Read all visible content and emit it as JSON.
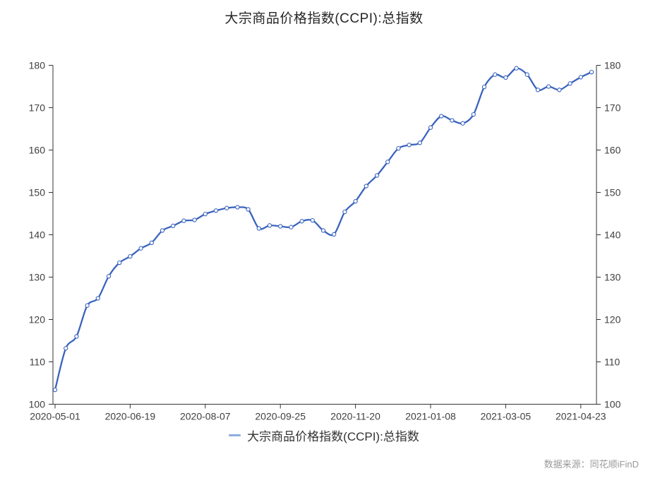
{
  "page_title": "大宗商品价格指数(CCPI):总指数",
  "chart_data": {
    "type": "line",
    "title": "大宗商品价格指数(CCPI):总指数",
    "series": [
      {
        "name": "大宗商品价格指数(CCPI):总指数",
        "values": [
          103.4,
          113.2,
          116.0,
          123.3,
          125.0,
          130.2,
          133.4,
          134.9,
          136.8,
          138.1,
          141.0,
          142.1,
          143.3,
          143.5,
          144.9,
          145.7,
          146.3,
          146.5,
          146.0,
          141.5,
          142.2,
          142.0,
          141.8,
          143.2,
          143.4,
          141.0,
          140.1,
          145.4,
          147.9,
          151.5,
          154.0,
          157.2,
          160.4,
          161.2,
          161.7,
          165.3,
          168.0,
          167.0,
          166.3,
          168.4,
          174.9,
          177.8,
          177.1,
          179.3,
          177.8,
          174.2,
          175.0,
          174.2,
          175.7,
          177.2,
          178.4
        ]
      }
    ],
    "x_tick_labels": [
      "2020-05-01",
      "2020-06-19",
      "2020-08-07",
      "2020-09-25",
      "2020-11-20",
      "2021-01-08",
      "2021-03-05",
      "2021-04-23"
    ],
    "x_tick_indices": [
      0,
      7,
      14,
      21,
      28,
      35,
      42,
      49
    ],
    "y_ticks": [
      100,
      110,
      120,
      130,
      140,
      150,
      160,
      170,
      180
    ],
    "ylim": [
      100,
      180
    ],
    "grid": false,
    "dual_y_axis": true,
    "legend_position": "bottom",
    "marker_style": "open-circle",
    "colors": {
      "line": "#3A63BE",
      "marker_fill": "#ffffff",
      "legend_marker": "#8FAEDC",
      "axis": "#333333",
      "tick_label": "#404040",
      "title": "#262626",
      "source": "#999999"
    }
  },
  "legend": {
    "items": [
      {
        "label": "大宗商品价格指数(CCPI):总指数"
      }
    ]
  },
  "footer": {
    "source": "数据来源：同花顺iFinD"
  }
}
